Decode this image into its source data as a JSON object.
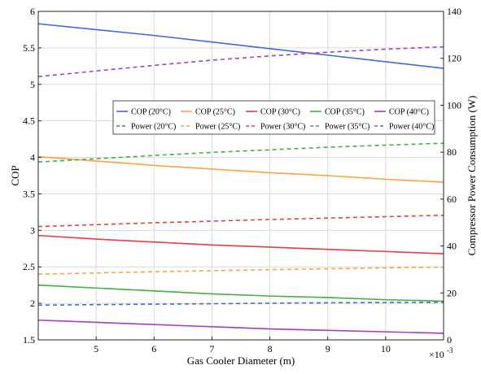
{
  "chart_data": {
    "type": "line",
    "xlabel": "Gas Cooler Diameter (m)",
    "ylabel_left": "COP",
    "ylabel_right": "Compressor Power Consumption (W)",
    "x_multiplier": "×10⁻³",
    "x_multiplier_base": "×10",
    "x_multiplier_exp": "-3",
    "xlim": [
      0.004,
      0.011
    ],
    "ylim_left": [
      1.5,
      6
    ],
    "ylim_right": [
      0,
      140
    ],
    "x_ticks": [
      0.005,
      0.006,
      0.007,
      0.008,
      0.009,
      0.01
    ],
    "x_tick_labels": [
      "5",
      "6",
      "7",
      "8",
      "9",
      "10"
    ],
    "y_left_ticks": [
      1.5,
      2,
      2.5,
      3,
      3.5,
      4,
      4.5,
      5,
      5.5,
      6
    ],
    "y_left_tick_labels": [
      "1.5",
      "2",
      "2.5",
      "3",
      "3.5",
      "4",
      "4.5",
      "5",
      "5.5",
      "6"
    ],
    "y_right_ticks": [
      0,
      20,
      40,
      60,
      80,
      100,
      120,
      140
    ],
    "y_right_tick_labels": [
      "0",
      "20",
      "40",
      "60",
      "80",
      "100",
      "120",
      "140"
    ],
    "grid": true,
    "legend_placement": "top-right",
    "series": [
      {
        "name": "COP (20°C)",
        "axis": "left",
        "style": "solid",
        "color": "#4169e1",
        "x": [
          0.004,
          0.005,
          0.006,
          0.007,
          0.008,
          0.009,
          0.01,
          0.011
        ],
        "y": [
          5.83,
          5.75,
          5.67,
          5.58,
          5.49,
          5.4,
          5.31,
          5.22
        ]
      },
      {
        "name": "COP (25°C)",
        "axis": "left",
        "style": "solid",
        "color": "#ffa040",
        "x": [
          0.004,
          0.005,
          0.006,
          0.007,
          0.008,
          0.009,
          0.01,
          0.011
        ],
        "y": [
          4.01,
          3.95,
          3.89,
          3.84,
          3.79,
          3.75,
          3.7,
          3.66
        ]
      },
      {
        "name": "COP (30°C)",
        "axis": "left",
        "style": "solid",
        "color": "#e04040",
        "x": [
          0.004,
          0.005,
          0.006,
          0.007,
          0.008,
          0.009,
          0.01,
          0.011
        ],
        "y": [
          2.93,
          2.88,
          2.84,
          2.8,
          2.77,
          2.74,
          2.71,
          2.68
        ]
      },
      {
        "name": "COP (35°C)",
        "axis": "left",
        "style": "solid",
        "color": "#40b040",
        "x": [
          0.004,
          0.005,
          0.006,
          0.007,
          0.008,
          0.009,
          0.01,
          0.011
        ],
        "y": [
          2.25,
          2.21,
          2.17,
          2.13,
          2.1,
          2.08,
          2.05,
          2.03
        ]
      },
      {
        "name": "COP (40°C)",
        "axis": "left",
        "style": "solid",
        "color": "#a040c0",
        "x": [
          0.004,
          0.005,
          0.006,
          0.007,
          0.008,
          0.009,
          0.01,
          0.011
        ],
        "y": [
          1.77,
          1.74,
          1.71,
          1.68,
          1.65,
          1.63,
          1.61,
          1.59
        ]
      },
      {
        "name": "Power (20°C)",
        "axis": "right",
        "style": "dashed",
        "color": "#4169e1",
        "x": [
          0.004,
          0.005,
          0.006,
          0.007,
          0.008,
          0.009,
          0.01,
          0.011
        ],
        "y": [
          14.8,
          15.0,
          15.2,
          15.4,
          15.6,
          15.8,
          15.9,
          16.0
        ]
      },
      {
        "name": "Power (25°C)",
        "axis": "right",
        "style": "dashed",
        "color": "#ffa040",
        "x": [
          0.004,
          0.005,
          0.006,
          0.007,
          0.008,
          0.009,
          0.01,
          0.011
        ],
        "y": [
          28.0,
          28.5,
          29.0,
          29.5,
          29.9,
          30.3,
          30.7,
          31.0
        ]
      },
      {
        "name": "Power (30°C)",
        "axis": "right",
        "style": "dashed",
        "color": "#e04040",
        "x": [
          0.004,
          0.005,
          0.006,
          0.007,
          0.008,
          0.009,
          0.01,
          0.011
        ],
        "y": [
          48.3,
          49.1,
          49.9,
          50.6,
          51.3,
          51.9,
          52.5,
          53.1
        ]
      },
      {
        "name": "Power (35°C)",
        "axis": "right",
        "style": "dashed",
        "color": "#40b040",
        "x": [
          0.004,
          0.005,
          0.006,
          0.007,
          0.008,
          0.009,
          0.01,
          0.011
        ],
        "y": [
          75.8,
          77.2,
          78.6,
          79.9,
          81.0,
          82.1,
          83.0,
          83.8
        ]
      },
      {
        "name": "Power (40°C)",
        "axis": "right",
        "style": "dashed",
        "color": "#a040c0",
        "x": [
          0.004,
          0.005,
          0.006,
          0.007,
          0.008,
          0.009,
          0.01,
          0.011
        ],
        "y": [
          112.2,
          114.6,
          117.0,
          119.2,
          121.0,
          122.6,
          123.9,
          124.9
        ]
      }
    ]
  }
}
